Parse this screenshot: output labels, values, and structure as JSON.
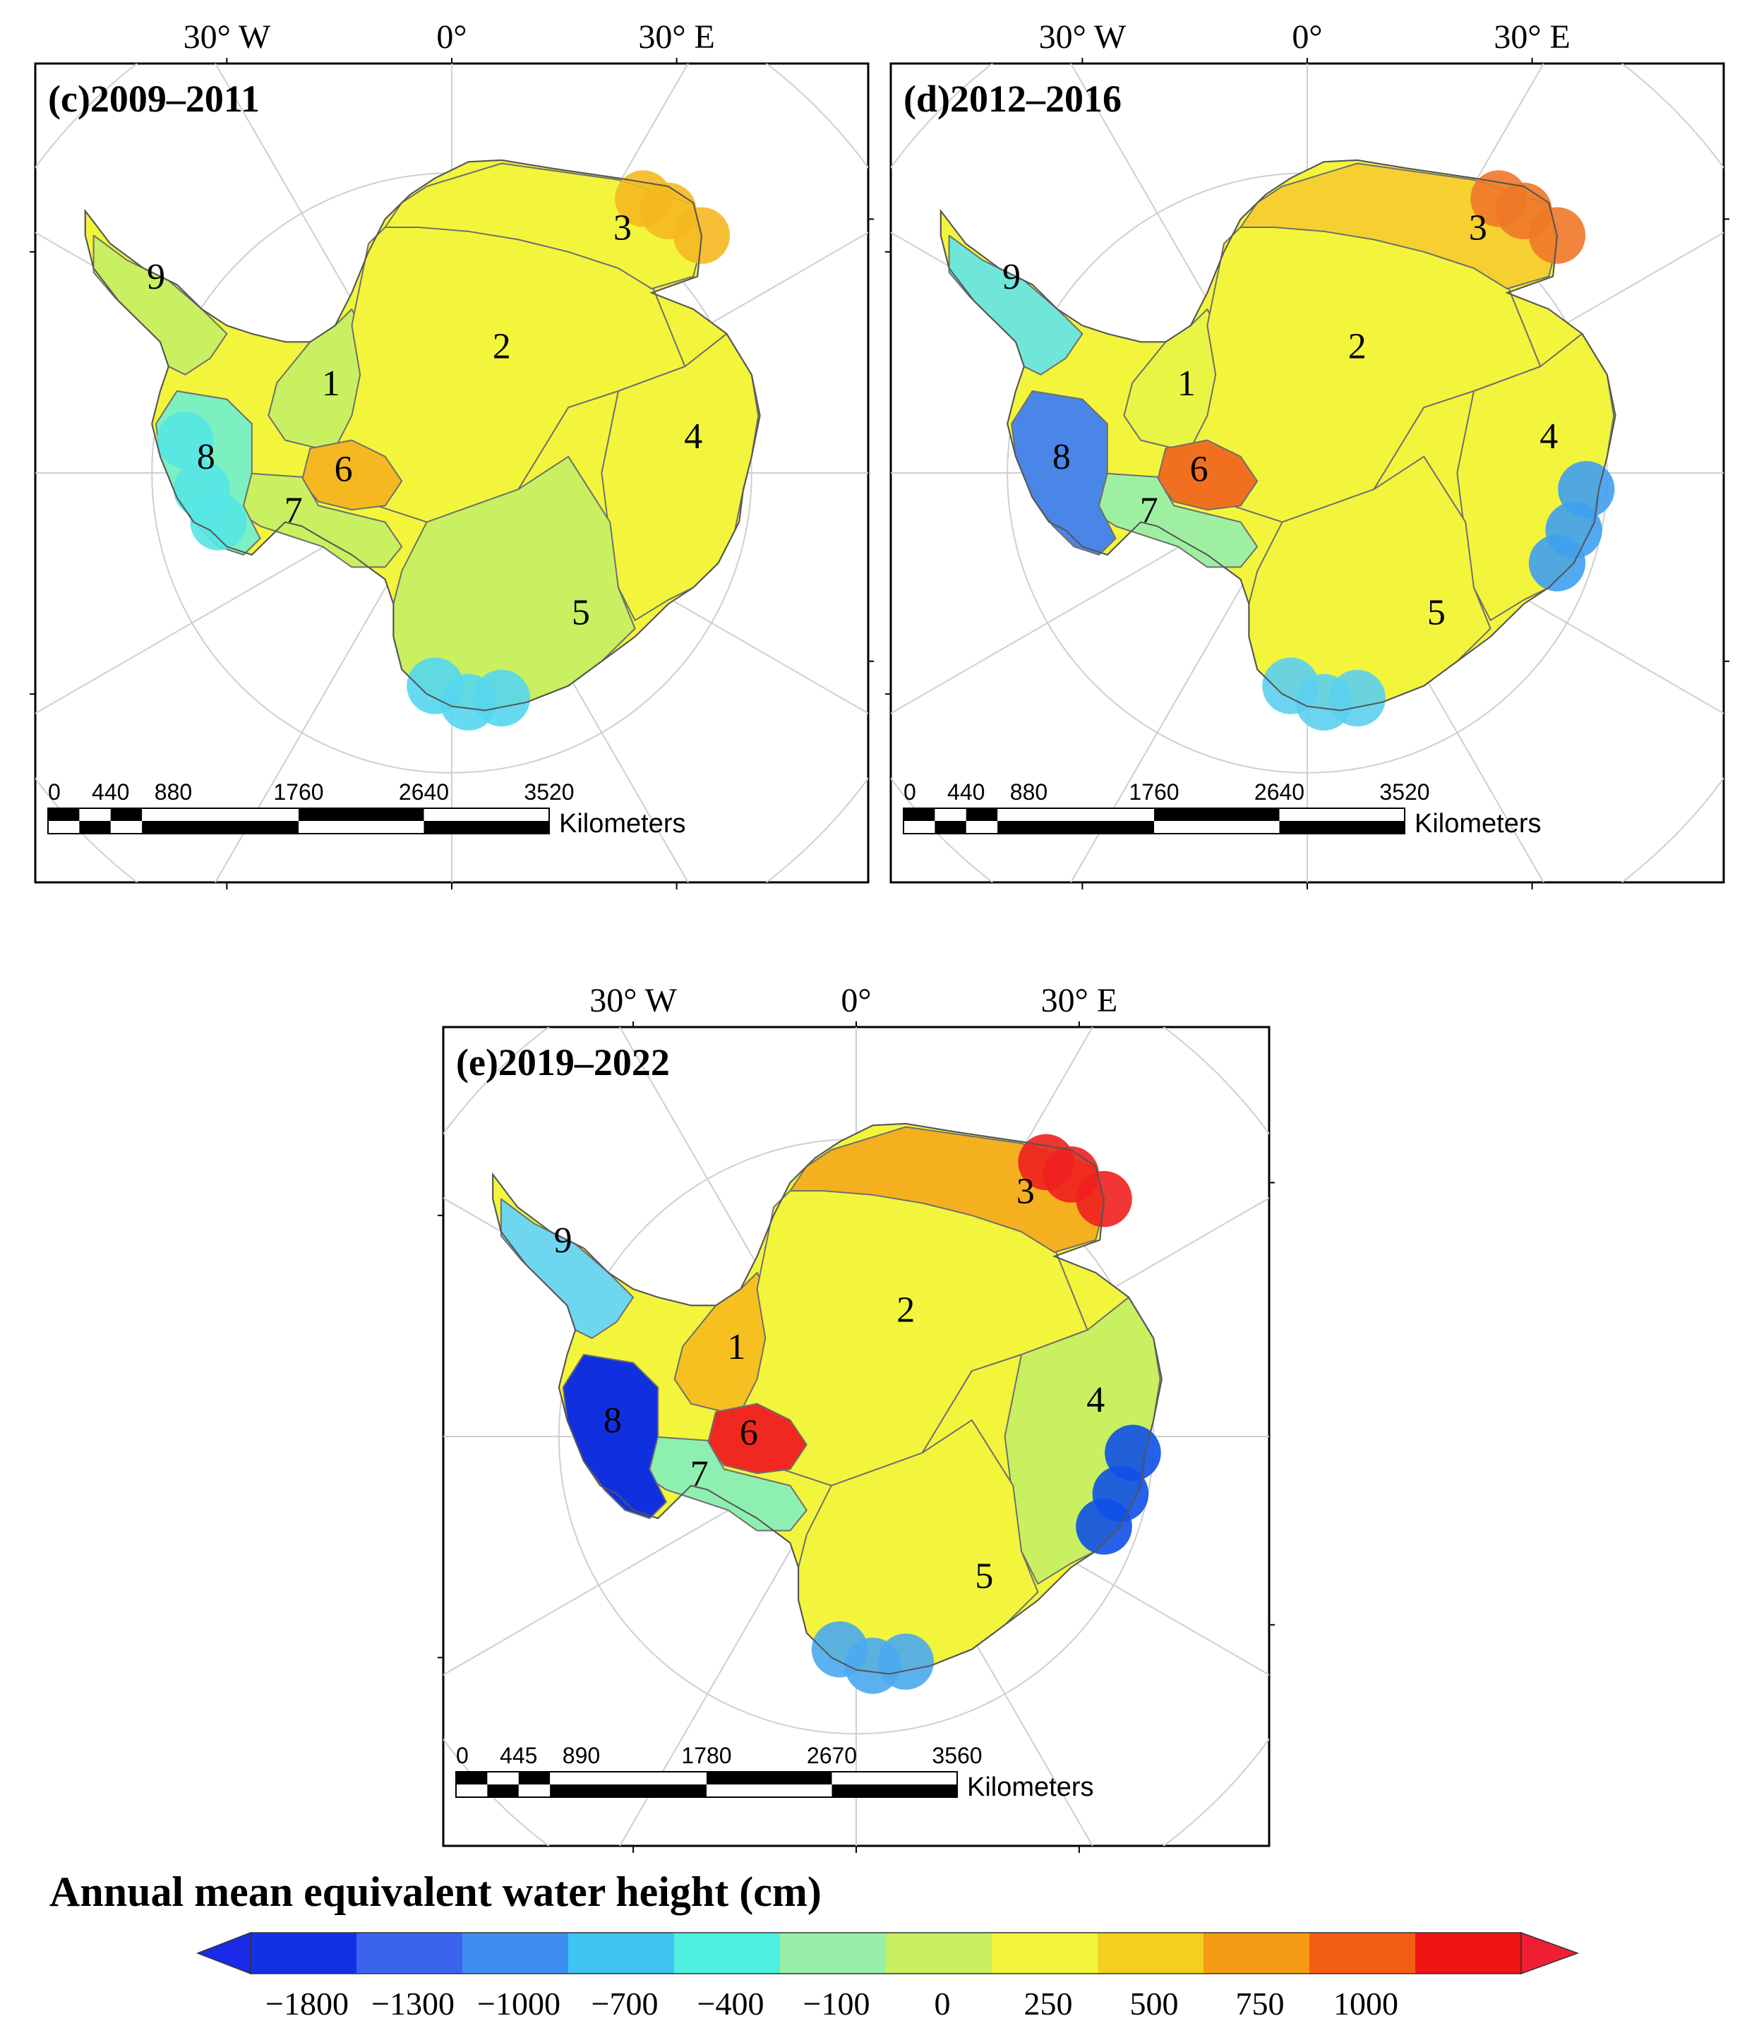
{
  "maps": [
    {
      "id": "c",
      "title": "(c)2009–2011",
      "lon_labels": [
        "30° W",
        "0°",
        "30° E"
      ],
      "regions": [
        {
          "label": "1",
          "color": "#c8f060"
        },
        {
          "label": "2",
          "color": "#f2f53c"
        },
        {
          "label": "3",
          "color": "#f2f53c"
        },
        {
          "label": "4",
          "color": "#f2f53c"
        },
        {
          "label": "5",
          "color": "#c8f060"
        },
        {
          "label": "6",
          "color": "#f5b820"
        },
        {
          "label": "7",
          "color": "#c8f060"
        },
        {
          "label": "8",
          "color": "#7cf0c0"
        },
        {
          "label": "9",
          "color": "#c8f060"
        }
      ],
      "hotspots": [
        {
          "region": "3",
          "color": "#f5b820"
        },
        {
          "region": "8",
          "color": "#55e6e6"
        },
        {
          "region": "5",
          "color": "#55d6ee"
        }
      ],
      "scale_labels": [
        "0",
        "440",
        "880",
        "1760",
        "2640",
        "3520"
      ],
      "scale_unit": "Kilometers"
    },
    {
      "id": "d",
      "title": "(d)2012–2016",
      "lon_labels": [
        "30° W",
        "0°",
        "30° E"
      ],
      "regions": [
        {
          "label": "1",
          "color": "#e8f545"
        },
        {
          "label": "2",
          "color": "#f2f53c"
        },
        {
          "label": "3",
          "color": "#f5d030"
        },
        {
          "label": "4",
          "color": "#f2f53c"
        },
        {
          "label": "5",
          "color": "#f2f53c"
        },
        {
          "label": "6",
          "color": "#f07020"
        },
        {
          "label": "7",
          "color": "#9ef0a0"
        },
        {
          "label": "8",
          "color": "#4a86e8"
        },
        {
          "label": "9",
          "color": "#6fe6d8"
        }
      ],
      "hotspots": [
        {
          "region": "3",
          "color": "#f07828"
        },
        {
          "region": "4",
          "color": "#3ea0f0"
        },
        {
          "region": "5",
          "color": "#5ccfee"
        }
      ],
      "scale_labels": [
        "0",
        "440",
        "880",
        "1760",
        "2640",
        "3520"
      ],
      "scale_unit": "Kilometers"
    },
    {
      "id": "e",
      "title": "(e)2019–2022",
      "lon_labels": [
        "30° W",
        "0°",
        "30° E"
      ],
      "regions": [
        {
          "label": "1",
          "color": "#f5c020"
        },
        {
          "label": "2",
          "color": "#f2f53c"
        },
        {
          "label": "3",
          "color": "#f5b020"
        },
        {
          "label": "4",
          "color": "#c8f060"
        },
        {
          "label": "5",
          "color": "#f2f53c"
        },
        {
          "label": "6",
          "color": "#f02820"
        },
        {
          "label": "7",
          "color": "#8ef0b0"
        },
        {
          "label": "8",
          "color": "#1030e0"
        },
        {
          "label": "9",
          "color": "#6fd6f0"
        }
      ],
      "hotspots": [
        {
          "region": "3",
          "color": "#f02020"
        },
        {
          "region": "4",
          "color": "#1050e8"
        },
        {
          "region": "5",
          "color": "#4aaaf0"
        }
      ],
      "scale_labels": [
        "0",
        "445",
        "890",
        "1780",
        "2670",
        "3560"
      ],
      "scale_unit": "Kilometers"
    }
  ],
  "legend": {
    "title": "Annual mean equivalent water height (cm)",
    "ticks": [
      "−1800",
      "−1300",
      "−1000",
      "−700",
      "−400",
      "−100",
      "0",
      "250",
      "500",
      "750",
      "1000"
    ],
    "colors": [
      "#1430e6",
      "#3a64ec",
      "#3d8ef0",
      "#3ec4f2",
      "#50f0e0",
      "#98f0a8",
      "#c8f060",
      "#f2f53c",
      "#f5cf1e",
      "#f59c14",
      "#f25e14",
      "#f01414"
    ],
    "low_arrow_color": "#1a2ae8",
    "high_arrow_color": "#f01e32"
  }
}
